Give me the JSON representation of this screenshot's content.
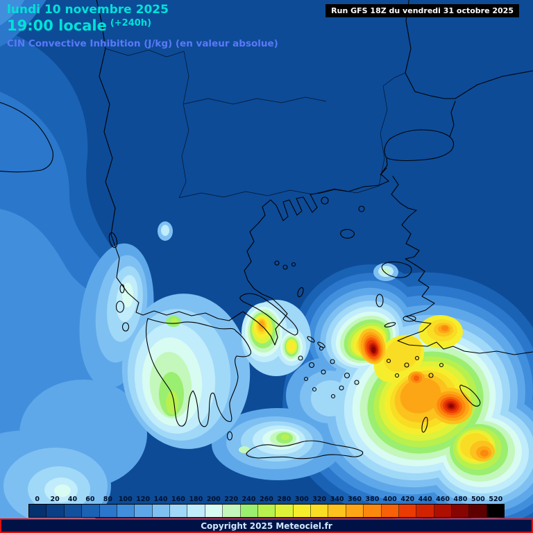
{
  "header": {
    "date": "lundi 10 novembre 2025",
    "time": "19:00 locale",
    "offset": "(+240h)",
    "parameter": "CIN Convective Inhibition (J/kg) (en valeur absolue)",
    "run_info": "Run GFS 18Z du vendredi 31 octobre 2025"
  },
  "colorbar": {
    "unit": "J/kg",
    "ticks": [
      0,
      20,
      40,
      60,
      80,
      100,
      120,
      140,
      160,
      180,
      200,
      220,
      240,
      260,
      280,
      300,
      320,
      340,
      360,
      380,
      400,
      420,
      440,
      460,
      480,
      500,
      520
    ],
    "colors": [
      "#06316f",
      "#0a3f85",
      "#11509c",
      "#1a62b4",
      "#2a77cc",
      "#418fdc",
      "#5ea8ea",
      "#7fc0f2",
      "#a0d8f8",
      "#c0ecfb",
      "#d8fbf2",
      "#c4f7bb",
      "#9aee70",
      "#b8f04e",
      "#def23a",
      "#f6ee2c",
      "#f9dc24",
      "#fcc21d",
      "#fda615",
      "#fc880e",
      "#f76108",
      "#eb3b04",
      "#d12302",
      "#ad1000",
      "#870500",
      "#5f0000",
      "#000000"
    ]
  },
  "map": {
    "sea_color": "#0d4b97",
    "coastline_color": "#000000"
  },
  "footer": {
    "copyright": "Copyright 2025 Meteociel.fr"
  }
}
